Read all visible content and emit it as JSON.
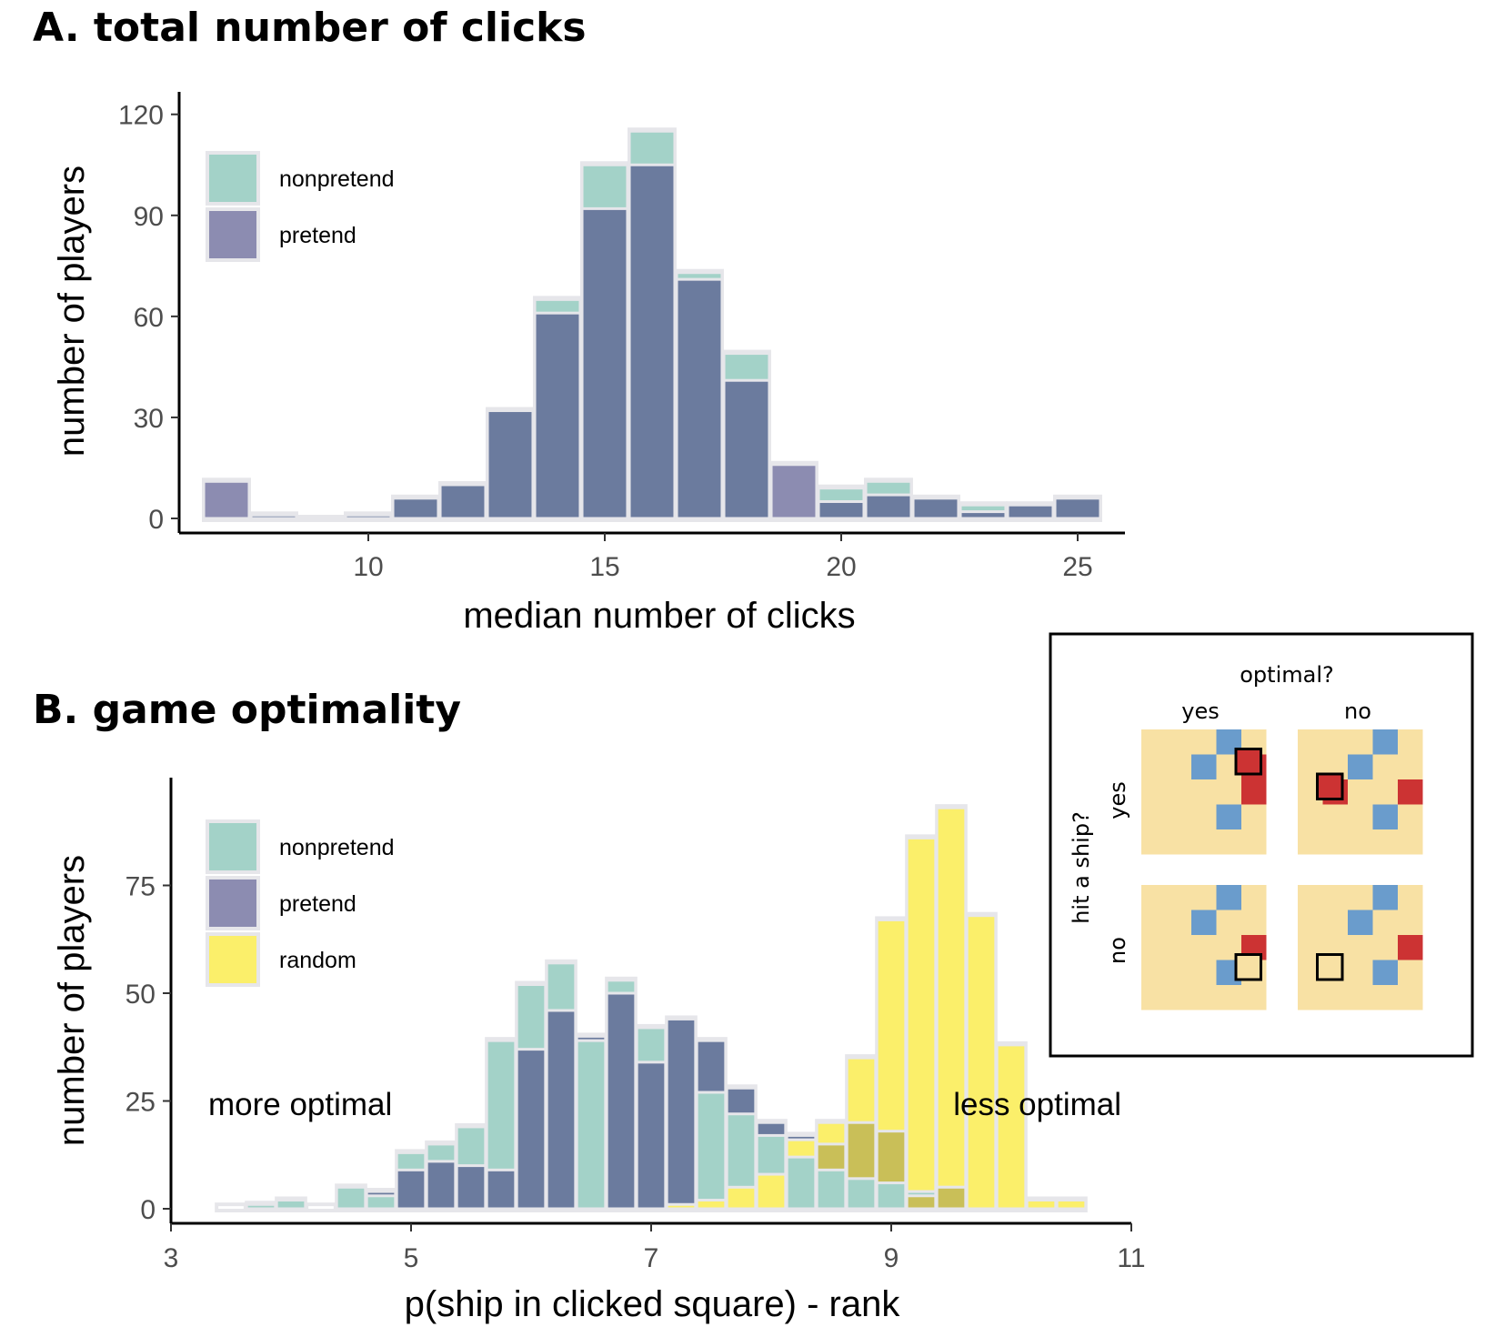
{
  "colors": {
    "nonpretend": "#a3d2c8",
    "pretend": "#6b7b9e",
    "pretend_legend": "#8c8cb1",
    "random": "#fbef6a",
    "overlap_pretend_random": "#c9bf58",
    "bar_outline": "#e6e6ea",
    "inset_bg": "#f8e1a4",
    "inset_ship": "#6a9ccc",
    "inset_hit": "#cc3333"
  },
  "chart_data": [
    {
      "type": "bar",
      "title": "A. total number of clicks",
      "xlabel": "median number of clicks",
      "ylabel": "number of players",
      "xlim": [
        6,
        26
      ],
      "ylim": [
        0,
        120
      ],
      "xticks": [
        "10",
        "15",
        "20",
        "25"
      ],
      "yticks": [
        "0",
        "30",
        "60",
        "90",
        "120"
      ],
      "legend": {
        "position": "top-left",
        "entries": [
          "nonpretend",
          "pretend"
        ]
      },
      "x": [
        7,
        8,
        9,
        10,
        11,
        12,
        13,
        14,
        15,
        16,
        17,
        18,
        19,
        20,
        21,
        22,
        23,
        24,
        25
      ],
      "series": [
        {
          "name": "nonpretend",
          "values": [
            0,
            1,
            0,
            1,
            6,
            10,
            32,
            65,
            105,
            115,
            73,
            49,
            11,
            9,
            11,
            6,
            4,
            4,
            6
          ]
        },
        {
          "name": "pretend",
          "values": [
            11,
            1,
            0,
            1,
            6,
            10,
            32,
            61,
            92,
            105,
            71,
            41,
            16,
            5,
            7,
            6,
            2,
            4,
            6
          ]
        }
      ]
    },
    {
      "type": "bar",
      "title": "B. game optimality",
      "xlabel": "p(ship in clicked square) - rank",
      "ylabel": "number of players",
      "xlim": [
        3,
        11
      ],
      "ylim": [
        0,
        95
      ],
      "xticks": [
        "3",
        "5",
        "7",
        "9",
        "11"
      ],
      "yticks": [
        "0",
        "25",
        "50",
        "75"
      ],
      "legend": {
        "position": "top-left",
        "entries": [
          "nonpretend",
          "pretend",
          "random"
        ]
      },
      "annotations": {
        "left": "more optimal",
        "right": "less optimal"
      },
      "x": [
        3.5,
        3.75,
        4.0,
        4.25,
        4.5,
        4.75,
        5.0,
        5.25,
        5.5,
        5.75,
        6.0,
        6.25,
        6.5,
        6.75,
        7.0,
        7.25,
        7.5,
        7.75,
        8.0,
        8.25,
        8.5,
        8.75,
        9.0,
        9.25,
        9.5,
        9.75,
        10.0,
        10.25,
        10.5
      ],
      "series": [
        {
          "name": "nonpretend",
          "values": [
            0,
            1,
            2,
            0,
            5,
            3,
            13,
            15,
            19,
            39,
            52,
            57,
            39,
            53,
            42,
            44,
            27,
            22,
            17,
            12,
            9,
            7,
            6,
            4,
            5,
            0,
            0,
            0,
            0
          ]
        },
        {
          "name": "pretend",
          "values": [
            0,
            0,
            0,
            0,
            0,
            4,
            9,
            11,
            10,
            9,
            37,
            46,
            40,
            50,
            34,
            44,
            39,
            28,
            20,
            17,
            15,
            20,
            18,
            3,
            5,
            0,
            0,
            0,
            0
          ]
        },
        {
          "name": "random",
          "values": [
            0,
            0,
            0,
            0,
            0,
            0,
            0,
            0,
            0,
            0,
            0,
            0,
            0,
            0,
            0,
            1,
            2,
            5,
            8,
            16,
            20,
            35,
            67,
            86,
            93,
            68,
            38,
            2,
            2
          ]
        }
      ]
    }
  ],
  "inset": {
    "col_header": "optimal?",
    "col_labels": [
      "yes",
      "no"
    ],
    "row_header": "hit a ship?",
    "row_labels": [
      "yes",
      "no"
    ]
  }
}
